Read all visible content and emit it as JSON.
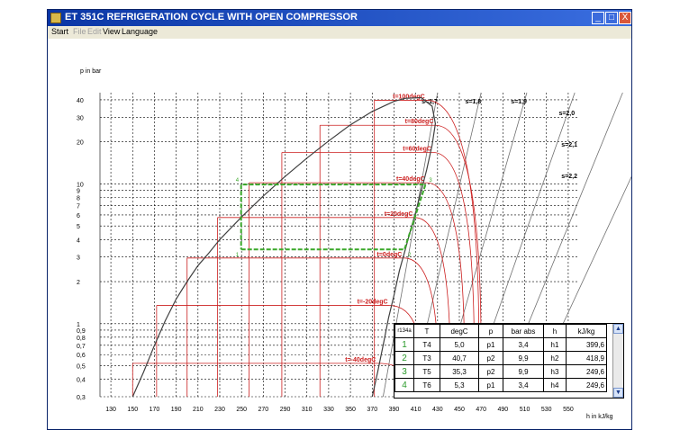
{
  "window": {
    "title": "ET 351C REFRIGERATION CYCLE WITH OPEN COMPRESSOR",
    "minimize": "_",
    "maximize": "□",
    "close": "X"
  },
  "menu": [
    "Start",
    "File",
    "Edit",
    "View",
    "Language"
  ],
  "menu_disabled": [
    false,
    true,
    true,
    false,
    false
  ],
  "chart_data": {
    "type": "line",
    "title": "",
    "ylabel": "p in bar",
    "xlabel": "h in kJ/kg",
    "y_scale": "log",
    "grid": true,
    "xlim": [
      120,
      560
    ],
    "ylim": [
      0.3,
      45
    ],
    "x_ticks": [
      130,
      150,
      170,
      190,
      210,
      230,
      250,
      270,
      290,
      310,
      330,
      350,
      370,
      390,
      410,
      430,
      450,
      470,
      490,
      510,
      530,
      550
    ],
    "y_ticks": [
      0.3,
      0.4,
      0.5,
      0.6,
      0.7,
      0.8,
      0.9,
      1,
      2,
      3,
      4,
      5,
      6,
      7,
      8,
      9,
      10,
      20,
      30,
      40
    ],
    "y_tick_labels": [
      "0,3",
      "0,4",
      "0,5",
      "0,6",
      "0,7",
      "0,8",
      "0,9",
      "1",
      "2",
      "3",
      "4",
      "5",
      "6",
      "7",
      "8",
      "9",
      "10",
      "20",
      "30",
      "40"
    ],
    "saturation_liquid": [
      [
        150,
        0.3
      ],
      [
        160,
        0.45
      ],
      [
        170,
        0.7
      ],
      [
        180,
        1.05
      ],
      [
        190,
        1.5
      ],
      [
        200,
        2.0
      ],
      [
        210,
        2.6
      ],
      [
        220,
        3.2
      ],
      [
        230,
        4.0
      ],
      [
        250,
        5.8
      ],
      [
        270,
        8.2
      ],
      [
        290,
        11.3
      ],
      [
        310,
        15.3
      ],
      [
        330,
        20.3
      ],
      [
        350,
        26.5
      ],
      [
        370,
        33.0
      ],
      [
        390,
        39.0
      ],
      [
        400,
        41.0
      ],
      [
        415,
        41.5
      ]
    ],
    "saturation_vapor": [
      [
        370,
        0.3
      ],
      [
        375,
        0.45
      ],
      [
        380,
        0.7
      ],
      [
        385,
        1.1
      ],
      [
        390,
        1.6
      ],
      [
        395,
        2.4
      ],
      [
        400,
        3.3
      ],
      [
        405,
        4.6
      ],
      [
        410,
        6.3
      ],
      [
        415,
        8.9
      ],
      [
        420,
        12.6
      ],
      [
        425,
        19.0
      ],
      [
        428,
        27.0
      ],
      [
        425,
        36.0
      ],
      [
        415,
        41.5
      ]
    ],
    "isotherms": [
      {
        "label": "t=-40degC",
        "p": 0.52,
        "h_start": 150,
        "h_end": 375
      },
      {
        "label": "t=-20degC",
        "p": 1.35,
        "h_start": 172,
        "h_end": 386
      },
      {
        "label": "t=0degC",
        "p": 2.95,
        "h_start": 200,
        "h_end": 399
      },
      {
        "label": "t=20degC",
        "p": 5.75,
        "h_start": 228,
        "h_end": 409
      },
      {
        "label": "t=40degC",
        "p": 10.2,
        "h_start": 257,
        "h_end": 420
      },
      {
        "label": "t=60degC",
        "p": 16.8,
        "h_start": 287,
        "h_end": 426
      },
      {
        "label": "t=80degC",
        "p": 26.3,
        "h_start": 322,
        "h_end": 428
      },
      {
        "label": "t=100degC",
        "p": 39.7,
        "h_start": 372,
        "h_end": 420
      }
    ],
    "isentropes": [
      {
        "label": "s=1,7",
        "h_top": 430,
        "h_bottom": 380
      },
      {
        "label": "s=1,8",
        "h_top": 470,
        "h_bottom": 405
      },
      {
        "label": "s=1,9",
        "h_top": 512,
        "h_bottom": 432
      },
      {
        "label": "s=2,0",
        "h_top": 556,
        "h_bottom": 458
      },
      {
        "label": "s=2,1",
        "h_top": 600,
        "h_bottom": 486
      },
      {
        "label": "s=2,2",
        "h_top": 644,
        "h_bottom": 514
      }
    ],
    "cycle": [
      [
        249.6,
        3.4
      ],
      [
        399.6,
        3.4
      ],
      [
        418.9,
        9.9
      ],
      [
        249.6,
        9.9
      ],
      [
        249.6,
        3.4
      ]
    ],
    "cycle_labels": [
      "1",
      "2",
      "3",
      "4"
    ]
  },
  "table": {
    "refrigerant": "r134a",
    "headers": [
      "T",
      "degC",
      "p",
      "bar abs",
      "h",
      "kJ/kg"
    ],
    "rows": [
      {
        "num": "1",
        "T": "T4",
        "degC": "5,0",
        "p": "p1",
        "bar": "3,4",
        "h": "h1",
        "kj": "399,6"
      },
      {
        "num": "2",
        "T": "T3",
        "degC": "40,7",
        "p": "p2",
        "bar": "9,9",
        "h": "h2",
        "kj": "418,9"
      },
      {
        "num": "3",
        "T": "T5",
        "degC": "35,3",
        "p": "p2",
        "bar": "9,9",
        "h": "h3",
        "kj": "249,6"
      },
      {
        "num": "4",
        "T": "T6",
        "degC": "5,3",
        "p": "p1",
        "bar": "3,4",
        "h": "h4",
        "kj": "249,6"
      }
    ],
    "scroll_up": "▲",
    "scroll_down": "▼"
  }
}
